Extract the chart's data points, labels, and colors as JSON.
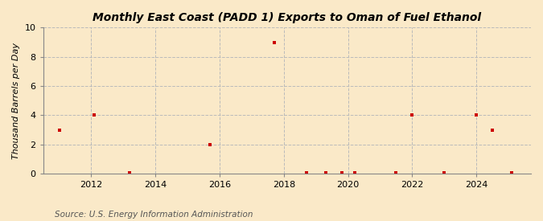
{
  "title": "Monthly East Coast (PADD 1) Exports to Oman of Fuel Ethanol",
  "ylabel": "Thousand Barrels per Day",
  "source": "Source: U.S. Energy Information Administration",
  "background_color": "#fae9c8",
  "plot_background_color": "#fae9c8",
  "marker_color": "#cc0000",
  "marker_size": 3.5,
  "xlim": [
    2010.5,
    2025.7
  ],
  "ylim": [
    0,
    10
  ],
  "yticks": [
    0,
    2,
    4,
    6,
    8,
    10
  ],
  "xticks": [
    2012,
    2014,
    2016,
    2018,
    2020,
    2022,
    2024
  ],
  "grid_color": "#bbbbbb",
  "data_x": [
    2011.0,
    2012.1,
    2013.2,
    2015.7,
    2017.7,
    2018.7,
    2019.3,
    2019.8,
    2020.2,
    2021.5,
    2022.0,
    2023.0,
    2024.0,
    2024.5,
    2025.1
  ],
  "data_y": [
    3.0,
    4.0,
    0.07,
    2.0,
    9.0,
    0.07,
    0.07,
    0.07,
    0.07,
    0.07,
    4.0,
    0.07,
    4.0,
    3.0,
    0.07
  ],
  "title_fontsize": 10,
  "ylabel_fontsize": 8,
  "tick_fontsize": 8,
  "source_fontsize": 7.5
}
